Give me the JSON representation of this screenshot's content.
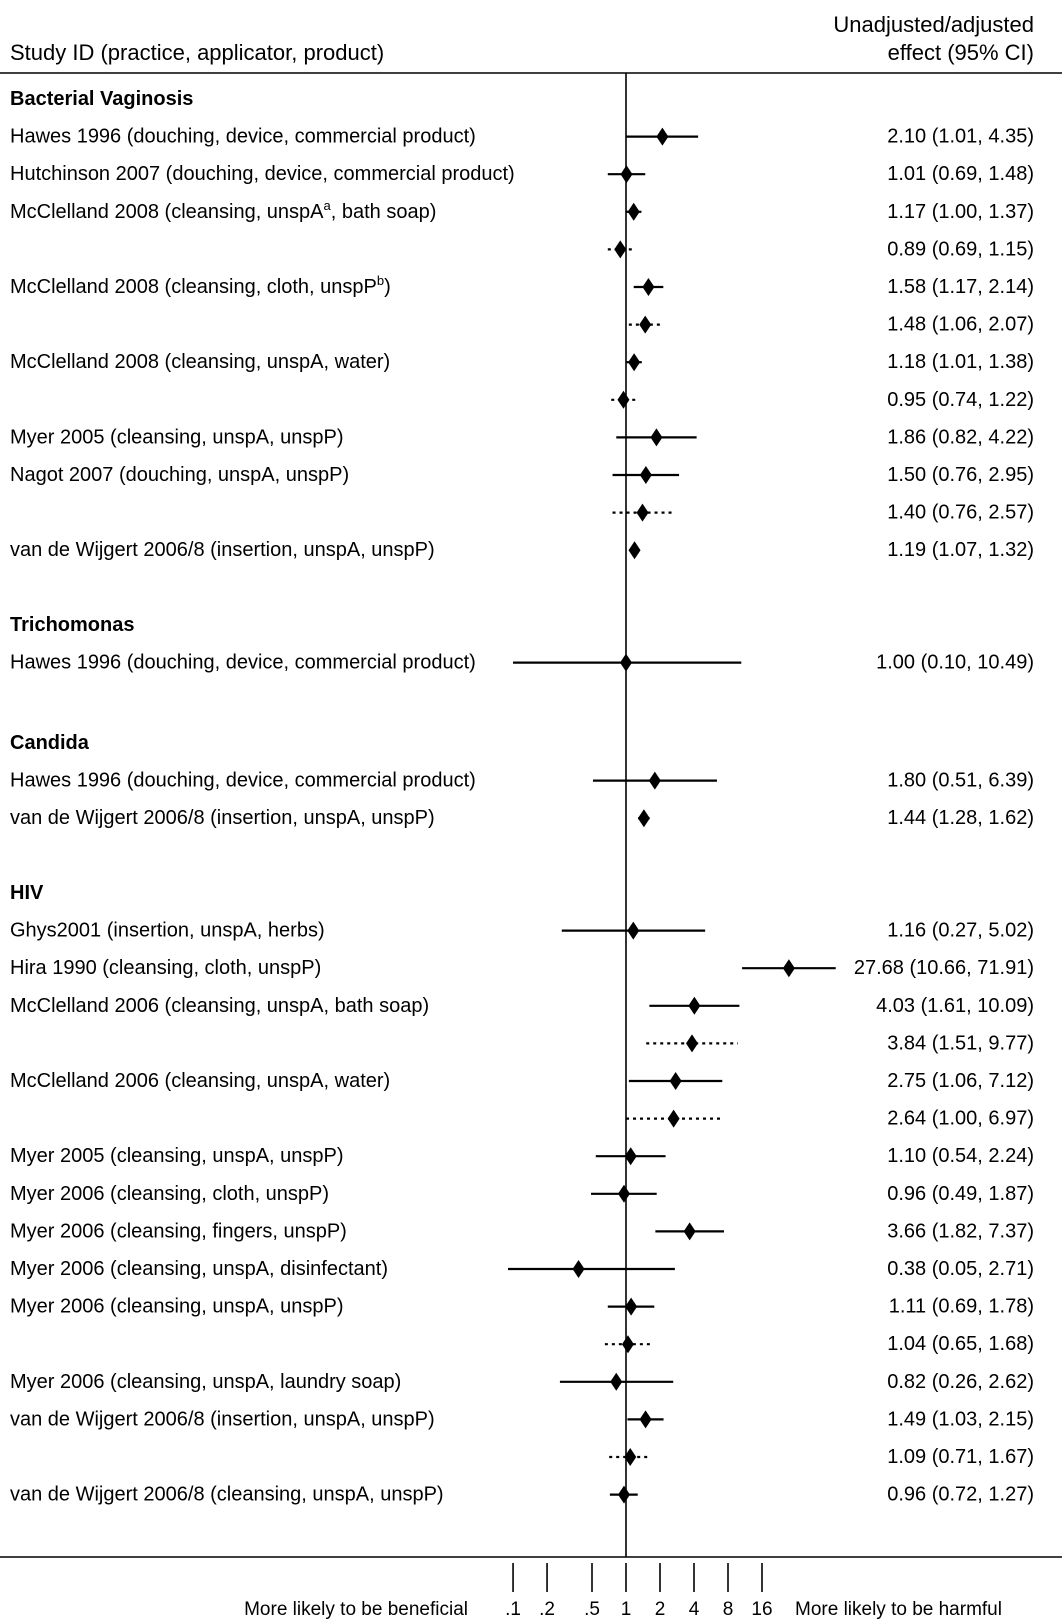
{
  "header": {
    "study_id": "Study ID (practice, applicator, product)",
    "effect_line1": "Unadjusted/adjusted",
    "effect_line2": "effect (95% CI)"
  },
  "footer": {
    "left_label": "More likely to be beneficial",
    "right_label": "More likely to be harmful"
  },
  "chart_data": {
    "type": "forest",
    "scale": "log2",
    "reference_line": 1,
    "x_ticks": [
      {
        "value": 0.1,
        "label": ".1"
      },
      {
        "value": 0.2,
        "label": ".2"
      },
      {
        "value": 0.5,
        "label": ".5"
      },
      {
        "value": 1,
        "label": "1"
      },
      {
        "value": 2,
        "label": "2"
      },
      {
        "value": 4,
        "label": "4"
      },
      {
        "value": 8,
        "label": "8"
      },
      {
        "value": 16,
        "label": "16"
      }
    ],
    "sections": [
      {
        "title": "Bacterial Vaginosis",
        "rows": [
          {
            "label": "Hawes 1996 (douching, device, commercial product)",
            "est": 2.1,
            "lo": 1.01,
            "hi": 4.35,
            "text": "2.10 (1.01, 4.35)",
            "adjusted": false
          },
          {
            "label": "Hutchinson 2007 (douching, device, commercial product)",
            "est": 1.01,
            "lo": 0.69,
            "hi": 1.48,
            "text": "1.01 (0.69, 1.48)",
            "adjusted": false
          },
          {
            "label": "McClelland 2008 (cleansing, unspA",
            "sup": "a",
            "label_after": ", bath soap)",
            "est": 1.17,
            "lo": 1.0,
            "hi": 1.37,
            "text": "1.17 (1.00, 1.37)",
            "adjusted": false
          },
          {
            "label": "",
            "est": 0.89,
            "lo": 0.69,
            "hi": 1.15,
            "text": "0.89 (0.69, 1.15)",
            "adjusted": true
          },
          {
            "label": "McClelland 2008 (cleansing, cloth, unspP",
            "sup": "b",
            "label_after": ")",
            "est": 1.58,
            "lo": 1.17,
            "hi": 2.14,
            "text": "1.58 (1.17, 2.14)",
            "adjusted": false
          },
          {
            "label": "",
            "est": 1.48,
            "lo": 1.06,
            "hi": 2.07,
            "text": "1.48 (1.06, 2.07)",
            "adjusted": true
          },
          {
            "label": "McClelland 2008 (cleansing, unspA, water)",
            "est": 1.18,
            "lo": 1.01,
            "hi": 1.38,
            "text": "1.18 (1.01, 1.38)",
            "adjusted": false
          },
          {
            "label": "",
            "est": 0.95,
            "lo": 0.74,
            "hi": 1.22,
            "text": "0.95 (0.74, 1.22)",
            "adjusted": true
          },
          {
            "label": "Myer 2005 (cleansing, unspA, unspP)",
            "est": 1.86,
            "lo": 0.82,
            "hi": 4.22,
            "text": "1.86 (0.82, 4.22)",
            "adjusted": false
          },
          {
            "label": "Nagot 2007 (douching, unspA, unspP)",
            "est": 1.5,
            "lo": 0.76,
            "hi": 2.95,
            "text": "1.50 (0.76, 2.95)",
            "adjusted": false
          },
          {
            "label": "",
            "est": 1.4,
            "lo": 0.76,
            "hi": 2.57,
            "text": "1.40 (0.76, 2.57)",
            "adjusted": true
          },
          {
            "label": "van de Wijgert 2006/8 (insertion, unspA, unspP)",
            "est": 1.19,
            "lo": 1.07,
            "hi": 1.32,
            "text": "1.19 (1.07, 1.32)",
            "adjusted": false
          }
        ]
      },
      {
        "title": "Trichomonas",
        "rows": [
          {
            "label": "Hawes 1996 (douching, device, commercial product)",
            "est": 1.0,
            "lo": 0.1,
            "hi": 10.49,
            "text": "1.00 (0.10, 10.49)",
            "adjusted": false
          }
        ]
      },
      {
        "title": "Candida",
        "rows": [
          {
            "label": "Hawes 1996 (douching, device, commercial product)",
            "est": 1.8,
            "lo": 0.51,
            "hi": 6.39,
            "text": "1.80 (0.51, 6.39)",
            "adjusted": false
          },
          {
            "label": "van de Wijgert 2006/8 (insertion, unspA, unspP)",
            "est": 1.44,
            "lo": 1.28,
            "hi": 1.62,
            "text": "1.44 (1.28, 1.62)",
            "adjusted": false
          }
        ]
      },
      {
        "title": "HIV",
        "rows": [
          {
            "label": "Ghys2001 (insertion, unspA, herbs)",
            "est": 1.16,
            "lo": 0.27,
            "hi": 5.02,
            "text": "1.16 (0.27, 5.02)",
            "adjusted": false
          },
          {
            "label": "Hira 1990 (cleansing, cloth, unspP)",
            "est": 27.68,
            "lo": 10.66,
            "hi": 71.91,
            "text": "27.68 (10.66, 71.91)",
            "adjusted": false,
            "truncated": true
          },
          {
            "label": "McClelland 2006 (cleansing, unspA, bath soap)",
            "est": 4.03,
            "lo": 1.61,
            "hi": 10.09,
            "text": "4.03 (1.61, 10.09)",
            "adjusted": false
          },
          {
            "label": "",
            "est": 3.84,
            "lo": 1.51,
            "hi": 9.77,
            "text": "3.84 (1.51, 9.77)",
            "adjusted": true
          },
          {
            "label": "McClelland 2006 (cleansing, unspA, water)",
            "est": 2.75,
            "lo": 1.06,
            "hi": 7.12,
            "text": "2.75 (1.06, 7.12)",
            "adjusted": false
          },
          {
            "label": "",
            "est": 2.64,
            "lo": 1.0,
            "hi": 6.97,
            "text": "2.64 (1.00, 6.97)",
            "adjusted": true
          },
          {
            "label": "Myer 2005 (cleansing, unspA, unspP)",
            "est": 1.1,
            "lo": 0.54,
            "hi": 2.24,
            "text": "1.10 (0.54, 2.24)",
            "adjusted": false
          },
          {
            "label": "Myer 2006 (cleansing, cloth, unspP)",
            "est": 0.96,
            "lo": 0.49,
            "hi": 1.87,
            "text": "0.96 (0.49, 1.87)",
            "adjusted": false
          },
          {
            "label": "Myer 2006 (cleansing, fingers, unspP)",
            "est": 3.66,
            "lo": 1.82,
            "hi": 7.37,
            "text": "3.66 (1.82, 7.37)",
            "adjusted": false
          },
          {
            "label": "Myer 2006 (cleansing, unspA, disinfectant)",
            "est": 0.38,
            "lo": 0.05,
            "hi": 2.71,
            "text": "0.38 (0.05, 2.71)",
            "adjusted": false
          },
          {
            "label": "Myer 2006 (cleansing, unspA, unspP)",
            "est": 1.11,
            "lo": 0.69,
            "hi": 1.78,
            "text": "1.11 (0.69, 1.78)",
            "adjusted": false
          },
          {
            "label": "",
            "est": 1.04,
            "lo": 0.65,
            "hi": 1.68,
            "text": "1.04 (0.65, 1.68)",
            "adjusted": true
          },
          {
            "label": "Myer 2006 (cleansing, unspA, laundry soap)",
            "est": 0.82,
            "lo": 0.26,
            "hi": 2.62,
            "text": "0.82 (0.26, 2.62)",
            "adjusted": false
          },
          {
            "label": "van de Wijgert 2006/8 (insertion, unspA, unspP)",
            "est": 1.49,
            "lo": 1.03,
            "hi": 2.15,
            "text": "1.49 (1.03, 2.15)",
            "adjusted": false
          },
          {
            "label": "",
            "est": 1.09,
            "lo": 0.71,
            "hi": 1.67,
            "text": "1.09 (0.71, 1.67)",
            "adjusted": true
          },
          {
            "label": "van de Wijgert 2006/8 (cleansing, unspA, unspP)",
            "est": 0.96,
            "lo": 0.72,
            "hi": 1.27,
            "text": "0.96 (0.72, 1.27)",
            "adjusted": false
          }
        ]
      }
    ]
  }
}
